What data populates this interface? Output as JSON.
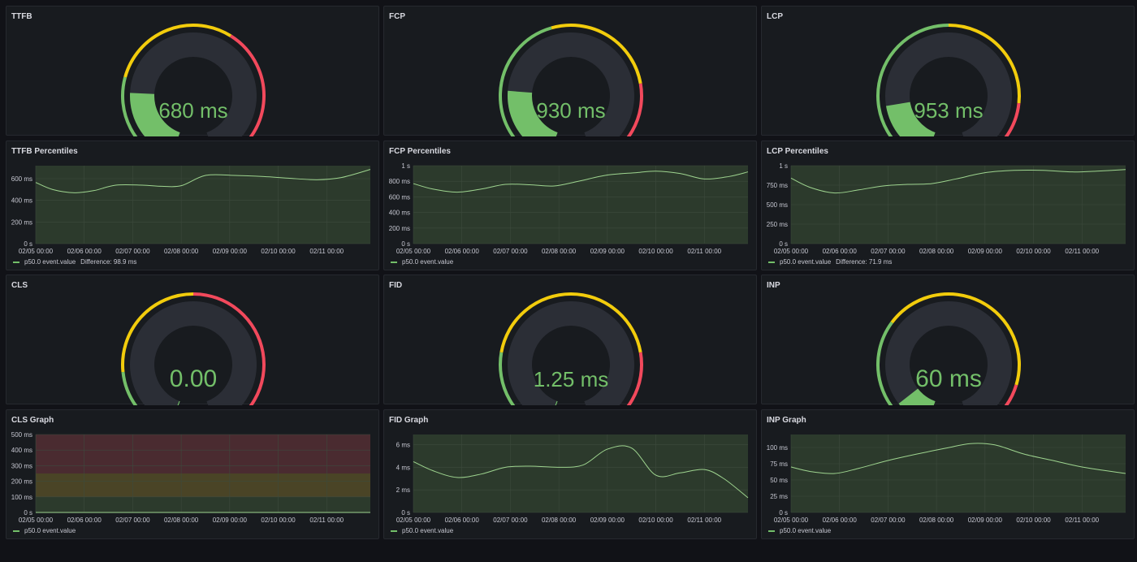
{
  "colors": {
    "green": "#73bf69",
    "yellow": "#f2cc0c",
    "red": "#f2495c",
    "track": "#2b2e36",
    "value": "#73bf69",
    "plot_bg": "#2c3a2c",
    "grid": "#3d4a3d"
  },
  "gauges": [
    {
      "id": "ttfb",
      "title": "TTFB",
      "value_text": "680 ms",
      "value": 680,
      "min": 0,
      "max": 3000,
      "thresholds": [
        800,
        1800
      ],
      "fill": 0.227
    },
    {
      "id": "fcp",
      "title": "FCP",
      "value_text": "930 ms",
      "value": 930,
      "min": 0,
      "max": 4000,
      "thresholds": [
        1800,
        3000
      ],
      "fill": 0.233
    },
    {
      "id": "lcp",
      "title": "LCP",
      "value_text": "953 ms",
      "value": 953,
      "min": 0,
      "max": 5000,
      "thresholds": [
        2500,
        4000
      ],
      "fill": 0.19
    },
    {
      "id": "cls",
      "title": "CLS",
      "value_text": "0.00",
      "value": 0,
      "min": 0,
      "max": 0.5,
      "thresholds": [
        0.1,
        0.25
      ],
      "fill": 0.0
    },
    {
      "id": "fid",
      "title": "FID",
      "value_text": "1.25 ms",
      "value": 1.25,
      "min": 0,
      "max": 400,
      "thresholds": [
        100,
        300
      ],
      "fill": 0.003
    },
    {
      "id": "inp",
      "title": "INP",
      "value_text": "60 ms",
      "value": 60,
      "min": 0,
      "max": 600,
      "thresholds": [
        200,
        500
      ],
      "fill": 0.1
    }
  ],
  "charts": [
    {
      "id": "ttfb-percentiles",
      "title": "TTFB Percentiles",
      "legend": "p50.0 event.value",
      "difference": "Difference: 98.9 ms",
      "y_ticks": [
        "0 s",
        "200 ms",
        "400 ms",
        "600 ms"
      ],
      "y_tick_values": [
        0,
        200,
        400,
        600
      ],
      "ymax": 720,
      "x_ticks": [
        "02/05 00:00",
        "02/06 00:00",
        "02/07 00:00",
        "02/08 00:00",
        "02/09 00:00",
        "02/10 00:00",
        "02/11 00:00"
      ],
      "x": [
        0,
        0.35,
        0.8,
        1.2,
        1.65,
        2.2,
        2.6,
        3.0,
        3.5,
        4.1,
        4.7,
        5.2,
        5.8,
        6.3,
        6.9
      ],
      "y": [
        565,
        500,
        470,
        490,
        540,
        540,
        530,
        535,
        630,
        630,
        620,
        605,
        590,
        610,
        685
      ],
      "bands": []
    },
    {
      "id": "fcp-percentiles",
      "title": "FCP Percentiles",
      "legend": "p50.0 event.value",
      "difference": "",
      "y_ticks": [
        "0 s",
        "200 ms",
        "400 ms",
        "600 ms",
        "800 ms",
        "1 s"
      ],
      "y_tick_values": [
        0,
        200,
        400,
        600,
        800,
        1000
      ],
      "ymax": 1000,
      "x_ticks": [
        "02/05 00:00",
        "02/06 00:00",
        "02/07 00:00",
        "02/08 00:00",
        "02/09 00:00",
        "02/10 00:00",
        "02/11 00:00"
      ],
      "x": [
        0,
        0.4,
        0.9,
        1.4,
        1.9,
        2.4,
        2.9,
        3.4,
        4.0,
        4.6,
        5.0,
        5.5,
        6.0,
        6.5,
        6.9
      ],
      "y": [
        770,
        700,
        660,
        700,
        760,
        755,
        740,
        800,
        880,
        910,
        930,
        900,
        830,
        860,
        920
      ],
      "bands": []
    },
    {
      "id": "lcp-percentiles",
      "title": "LCP Percentiles",
      "legend": "p50.0 event.value",
      "difference": "Difference: 71.9 ms",
      "y_ticks": [
        "0 s",
        "250 ms",
        "500 ms",
        "750 ms",
        "1 s"
      ],
      "y_tick_values": [
        0,
        250,
        500,
        750,
        1000
      ],
      "ymax": 1000,
      "x_ticks": [
        "02/05 00:00",
        "02/06 00:00",
        "02/07 00:00",
        "02/08 00:00",
        "02/09 00:00",
        "02/10 00:00",
        "02/11 00:00"
      ],
      "x": [
        0,
        0.4,
        0.9,
        1.4,
        1.9,
        2.4,
        2.9,
        3.4,
        4.0,
        4.6,
        5.2,
        5.8,
        6.3,
        6.9
      ],
      "y": [
        840,
        720,
        650,
        690,
        740,
        760,
        770,
        830,
        910,
        940,
        940,
        920,
        930,
        950
      ],
      "bands": []
    },
    {
      "id": "cls-graph",
      "title": "CLS Graph",
      "legend": "p50.0 event.value",
      "difference": "",
      "y_ticks": [
        "0 s",
        "100 ms",
        "200 ms",
        "300 ms",
        "400 ms",
        "500 ms"
      ],
      "y_tick_values": [
        0,
        100,
        200,
        300,
        400,
        500
      ],
      "ymax": 500,
      "x_ticks": [
        "02/05 00:00",
        "02/06 00:00",
        "02/07 00:00",
        "02/08 00:00",
        "02/09 00:00",
        "02/10 00:00",
        "02/11 00:00"
      ],
      "x": [
        0,
        6.9
      ],
      "y": [
        0,
        0
      ],
      "bands": [
        {
          "from": 0,
          "to": 100,
          "color": "#2c3a2c"
        },
        {
          "from": 100,
          "to": 250,
          "color": "#4a4426"
        },
        {
          "from": 250,
          "to": 500,
          "color": "#4a2b30"
        }
      ]
    },
    {
      "id": "fid-graph",
      "title": "FID Graph",
      "legend": "p50.0 event.value",
      "difference": "",
      "y_ticks": [
        "0 s",
        "2 ms",
        "4 ms",
        "6 ms"
      ],
      "y_tick_values": [
        0,
        2,
        4,
        6
      ],
      "ymax": 6.9,
      "x_ticks": [
        "02/05 00:00",
        "02/06 00:00",
        "02/07 00:00",
        "02/08 00:00",
        "02/09 00:00",
        "02/10 00:00",
        "02/11 00:00"
      ],
      "x": [
        0,
        0.4,
        0.9,
        1.4,
        1.9,
        2.4,
        3.0,
        3.5,
        4.0,
        4.5,
        5.0,
        5.5,
        6.0,
        6.4,
        6.9
      ],
      "y": [
        4.5,
        3.7,
        3.1,
        3.4,
        4.0,
        4.1,
        4.0,
        4.2,
        5.6,
        5.7,
        3.3,
        3.5,
        3.8,
        3.0,
        1.3
      ],
      "bands": []
    },
    {
      "id": "inp-graph",
      "title": "INP Graph",
      "legend": "p50.0 event.value",
      "difference": "",
      "y_ticks": [
        "0 s",
        "25 ms",
        "50 ms",
        "75 ms",
        "100 ms"
      ],
      "y_tick_values": [
        0,
        25,
        50,
        75,
        100
      ],
      "ymax": 120,
      "x_ticks": [
        "02/05 00:00",
        "02/06 00:00",
        "02/07 00:00",
        "02/08 00:00",
        "02/09 00:00",
        "02/10 00:00",
        "02/11 00:00"
      ],
      "x": [
        0,
        0.4,
        0.9,
        1.4,
        2.0,
        2.6,
        3.2,
        3.7,
        4.2,
        4.8,
        5.4,
        6.0,
        6.9
      ],
      "y": [
        70,
        63,
        60,
        68,
        80,
        90,
        99,
        106,
        104,
        90,
        80,
        70,
        60
      ],
      "bands": []
    }
  ]
}
